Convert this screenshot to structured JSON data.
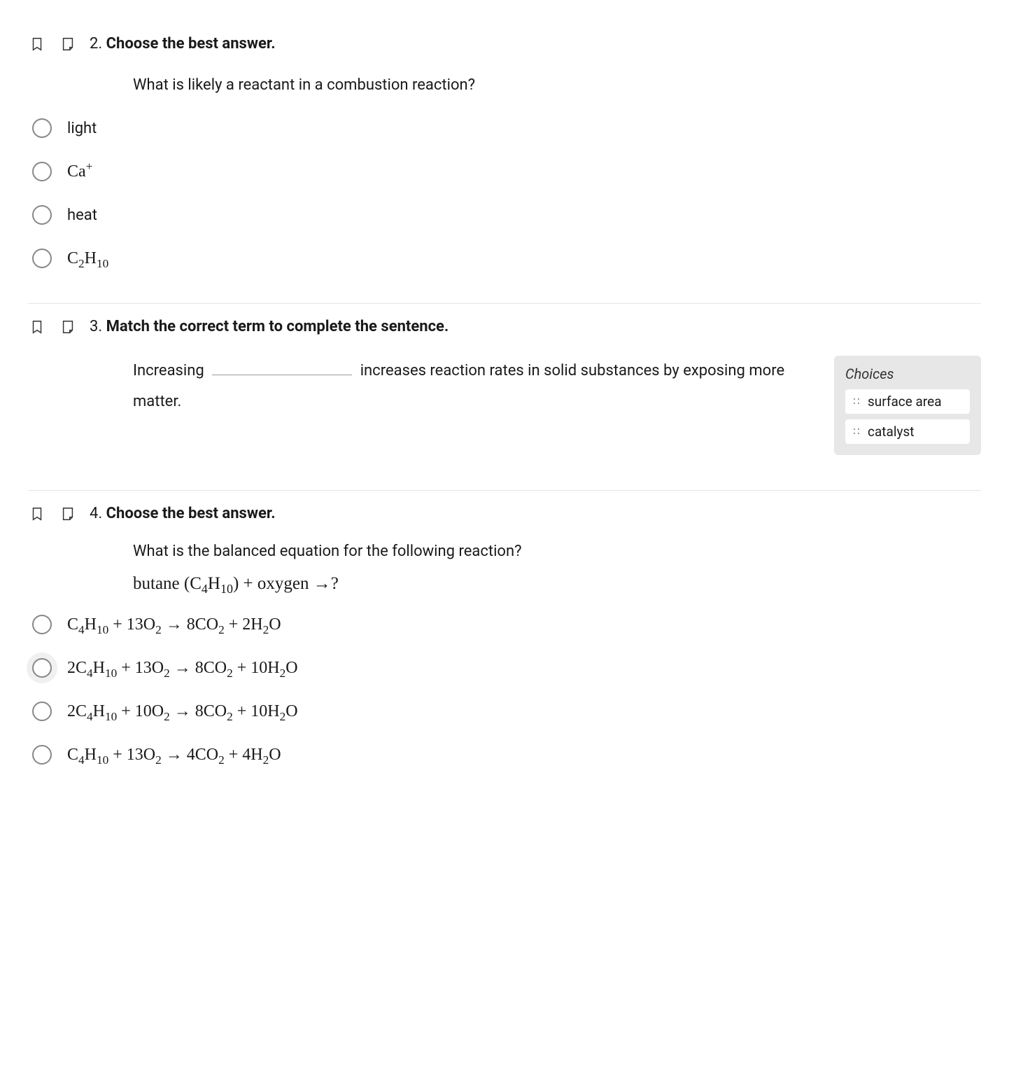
{
  "q2": {
    "number": "2.",
    "prompt": "Choose the best answer.",
    "body": "What is likely a reactant in a combustion reaction?",
    "options": {
      "a": "light",
      "b_html": "Ca<span class='sup'>+</span>",
      "c": "heat",
      "d_html": "C<span class='sub'>2</span>H<span class='sub'>10</span>"
    }
  },
  "q3": {
    "number": "3.",
    "prompt": "Match the correct term to complete the sentence.",
    "sentence_pre": "Increasing",
    "sentence_post": "increases reaction rates in solid substances by exposing more matter.",
    "choices_label": "Choices",
    "choices": [
      "surface area",
      "catalyst"
    ]
  },
  "q4": {
    "number": "4.",
    "prompt": "Choose the best answer.",
    "body": "What is the balanced equation for the following reaction?",
    "equation_html": "butane (C<span class='sub'>4</span>H<span class='sub'>10</span>) + oxygen &rarr;?",
    "options": {
      "a_html": "C<span class='sub'>4</span>H<span class='sub'>10</span> + 13O<span class='sub'>2</span> &rarr; 8CO<span class='sub'>2</span> + 2H<span class='sub'>2</span>O",
      "b_html": "2C<span class='sub'>4</span>H<span class='sub'>10</span> + 13O<span class='sub'>2</span> &rarr; 8CO<span class='sub'>2</span> + 10H<span class='sub'>2</span>O",
      "c_html": "2C<span class='sub'>4</span>H<span class='sub'>10</span> + 10O<span class='sub'>2</span> &rarr; 8CO<span class='sub'>2</span> + 10H<span class='sub'>2</span>O",
      "d_html": "C<span class='sub'>4</span>H<span class='sub'>10</span> + 13O<span class='sub'>2</span> &rarr; 4CO<span class='sub'>2</span> + 4H<span class='sub'>2</span>O"
    }
  }
}
